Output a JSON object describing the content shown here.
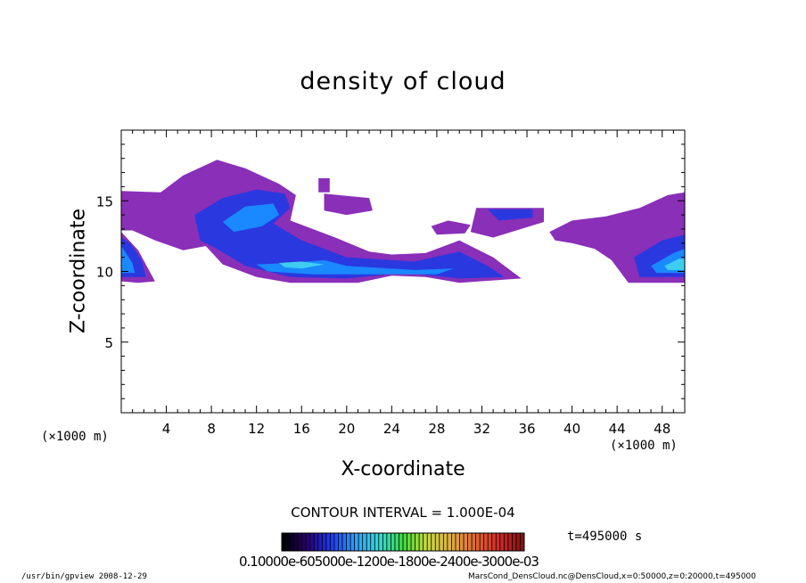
{
  "chart_data": {
    "type": "heatmap",
    "title": "density of cloud",
    "xlabel": "X-coordinate",
    "ylabel": "Z-coordinate",
    "x_unit_label": "(×1000 m)",
    "xlim": [
      0,
      50
    ],
    "ylim": [
      0,
      20
    ],
    "x_ticks": [
      4,
      8,
      12,
      16,
      20,
      24,
      28,
      32,
      36,
      40,
      44,
      48
    ],
    "y_ticks": [
      5,
      10,
      15
    ],
    "contour_interval": "CONTOUR INTERVAL = 1.000E-04",
    "time_label": "t=495000 s",
    "colorbar_labels": "0.10000e-05 0.60000e-04 0.12000e-03 0.18000e-03 0.24000e-03 0.30000e-03",
    "colorbar_display": "0.10000e-605000e-1200e-1800e-2400e-3000e-03",
    "colorbar_colors": [
      "#000000",
      "#2a0070",
      "#1a3aff",
      "#2fa0ff",
      "#33d9d9",
      "#3ed93e",
      "#c8d93e",
      "#e0b040",
      "#e06a30",
      "#d22a2a",
      "#8a1010"
    ],
    "regions": [
      {
        "level": 1,
        "pts": [
          [
            0,
            15.7
          ],
          [
            3.5,
            15.6
          ],
          [
            5.5,
            16.8
          ],
          [
            8.5,
            17.9
          ],
          [
            11,
            17.3
          ],
          [
            14,
            16.2
          ],
          [
            15.5,
            15.4
          ],
          [
            15,
            13.6
          ],
          [
            19,
            12.4
          ],
          [
            22,
            11.4
          ],
          [
            24,
            11.2
          ],
          [
            27,
            11.3
          ],
          [
            30,
            12.2
          ],
          [
            33,
            11.0
          ],
          [
            35.5,
            9.5
          ],
          [
            30,
            9.2
          ],
          [
            27,
            9.6
          ],
          [
            24,
            9.7
          ],
          [
            21,
            9.2
          ],
          [
            15,
            9.2
          ],
          [
            12,
            9.6
          ],
          [
            9,
            10.5
          ],
          [
            7.5,
            11.8
          ],
          [
            5.5,
            11.5
          ],
          [
            3,
            12.2
          ],
          [
            1,
            12.9
          ],
          [
            0,
            12.9
          ]
        ]
      },
      {
        "level": 1,
        "pts": [
          [
            0,
            12.8
          ],
          [
            1.5,
            11.5
          ],
          [
            3,
            9.3
          ],
          [
            1.5,
            9.2
          ],
          [
            0,
            9.3
          ]
        ]
      },
      {
        "level": 1,
        "pts": [
          [
            17.5,
            16.6
          ],
          [
            18.5,
            16.6
          ],
          [
            18.5,
            15.6
          ],
          [
            17.5,
            15.6
          ]
        ]
      },
      {
        "level": 1,
        "pts": [
          [
            18,
            15.5
          ],
          [
            22,
            15.2
          ],
          [
            22.3,
            14.3
          ],
          [
            20,
            14.0
          ],
          [
            18,
            14.3
          ]
        ]
      },
      {
        "level": 1,
        "pts": [
          [
            31.5,
            14.5
          ],
          [
            37.5,
            14.5
          ],
          [
            37.5,
            13.5
          ],
          [
            33,
            12.4
          ],
          [
            31,
            12.8
          ]
        ]
      },
      {
        "level": 1,
        "pts": [
          [
            38,
            12.8
          ],
          [
            40,
            13.6
          ],
          [
            43,
            13.9
          ],
          [
            46,
            14.5
          ],
          [
            48.5,
            15.4
          ],
          [
            50,
            15.6
          ],
          [
            50,
            9.2
          ],
          [
            45,
            9.2
          ],
          [
            43.5,
            10.8
          ],
          [
            42,
            11.6
          ],
          [
            40,
            12.0
          ],
          [
            38.5,
            12.2
          ]
        ]
      },
      {
        "level": 1,
        "pts": [
          [
            27.5,
            13.2
          ],
          [
            29,
            13.6
          ],
          [
            31,
            13.3
          ],
          [
            30.5,
            12.7
          ],
          [
            28,
            12.6
          ]
        ]
      },
      {
        "level": 2,
        "pts": [
          [
            6.5,
            14.0
          ],
          [
            9,
            15.2
          ],
          [
            12,
            15.8
          ],
          [
            14.5,
            15.5
          ],
          [
            15,
            14.5
          ],
          [
            13.5,
            13.4
          ],
          [
            16,
            12.2
          ],
          [
            20,
            11.0
          ],
          [
            26,
            10.7
          ],
          [
            30,
            11.4
          ],
          [
            32.5,
            10.4
          ],
          [
            34,
            9.6
          ],
          [
            30,
            9.5
          ],
          [
            25,
            9.9
          ],
          [
            20,
            9.5
          ],
          [
            15,
            9.6
          ],
          [
            11,
            10.4
          ],
          [
            8.5,
            11.6
          ],
          [
            7,
            12.2
          ]
        ]
      },
      {
        "level": 2,
        "pts": [
          [
            0,
            12.4
          ],
          [
            0.8,
            12.0
          ],
          [
            1.8,
            10.8
          ],
          [
            2.2,
            9.6
          ],
          [
            0,
            9.6
          ]
        ]
      },
      {
        "level": 2,
        "pts": [
          [
            32.5,
            14.4
          ],
          [
            36.5,
            14.4
          ],
          [
            36.5,
            13.8
          ],
          [
            33.5,
            13.6
          ]
        ]
      },
      {
        "level": 2,
        "pts": [
          [
            45.5,
            11.0
          ],
          [
            48,
            12.2
          ],
          [
            50,
            12.6
          ],
          [
            50,
            9.6
          ],
          [
            46,
            9.6
          ]
        ]
      },
      {
        "level": 3,
        "pts": [
          [
            9,
            13.5
          ],
          [
            11,
            14.6
          ],
          [
            13.5,
            14.8
          ],
          [
            14,
            14.0
          ],
          [
            12.5,
            13.2
          ],
          [
            10,
            12.8
          ]
        ]
      },
      {
        "level": 3,
        "pts": [
          [
            12,
            10.5
          ],
          [
            15,
            10.6
          ],
          [
            18,
            10.8
          ],
          [
            20,
            10.4
          ],
          [
            26,
            10.1
          ],
          [
            29.5,
            10.2
          ],
          [
            28,
            9.8
          ],
          [
            22,
            9.8
          ],
          [
            17,
            9.8
          ],
          [
            13,
            10.0
          ]
        ]
      },
      {
        "level": 3,
        "pts": [
          [
            0,
            11.8
          ],
          [
            1,
            10.6
          ],
          [
            1.2,
            9.9
          ],
          [
            0,
            9.9
          ]
        ]
      },
      {
        "level": 3,
        "pts": [
          [
            47,
            10.4
          ],
          [
            49,
            11.3
          ],
          [
            50,
            11.6
          ],
          [
            50,
            9.9
          ],
          [
            47.5,
            9.9
          ]
        ]
      },
      {
        "level": 4,
        "pts": [
          [
            14,
            10.6
          ],
          [
            16,
            10.7
          ],
          [
            18,
            10.5
          ],
          [
            16,
            10.2
          ],
          [
            14.5,
            10.3
          ]
        ]
      },
      {
        "level": 4,
        "pts": [
          [
            48.2,
            10.4
          ],
          [
            49.5,
            10.9
          ],
          [
            50,
            10.9
          ],
          [
            50,
            10.1
          ],
          [
            48.5,
            10.1
          ]
        ]
      }
    ]
  },
  "footer": {
    "left": "/usr/bin/gpview  2008-12-29",
    "right": "MarsCond_DensCloud.nc@DensCloud,x=0:50000,z=0:20000,t=495000"
  }
}
